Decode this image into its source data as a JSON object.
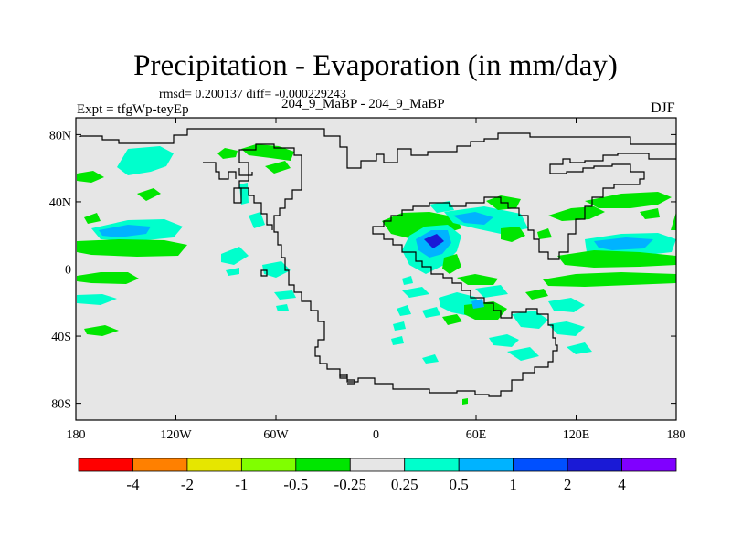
{
  "title": "Precipitation - Evaporation (in mm/day)",
  "stats": "rmsd= 0.200137 diff= -0.000229243",
  "experiment": "Expt = tfgWp-teyEp",
  "case": "204_9_MaBP - 204_9_MaBP",
  "season": "DJF",
  "map": {
    "lon_range": [
      -180,
      180
    ],
    "lat_range": [
      -90,
      90
    ],
    "x_tick_labels": [
      "180",
      "120W",
      "60W",
      "0",
      "60E",
      "120E",
      "180"
    ],
    "y_tick_labels": [
      "80N",
      "40N",
      "0",
      "40S",
      "80S"
    ],
    "land_color": "#e6e6e6"
  },
  "colorbar": {
    "colors": [
      "#ff0000",
      "#ff8000",
      "#e6e600",
      "#80ff00",
      "#00e600",
      "#e6e6e6",
      "#00ffcc",
      "#00b3ff",
      "#0050ff",
      "#1a1ad6",
      "#8000ff"
    ],
    "labels": [
      "-4",
      "-2",
      "-1",
      "-0.5",
      "-0.25",
      "0.25",
      "0.5",
      "1",
      "2",
      "4"
    ]
  }
}
